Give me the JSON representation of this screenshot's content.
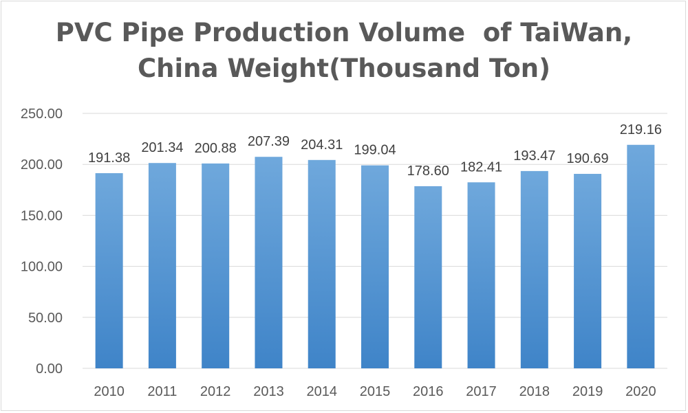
{
  "chart_data": {
    "type": "bar",
    "title_lines": [
      "PVC Pipe Production Volume  of TaiWan,",
      "China Weight(Thousand Ton)"
    ],
    "categories": [
      "2010",
      "2011",
      "2012",
      "2013",
      "2014",
      "2015",
      "2016",
      "2017",
      "2018",
      "2019",
      "2020"
    ],
    "values": [
      191.38,
      201.34,
      200.88,
      207.39,
      204.31,
      199.04,
      178.6,
      182.41,
      193.47,
      190.69,
      219.16
    ],
    "value_labels": [
      "191.38",
      "201.34",
      "200.88",
      "207.39",
      "204.31",
      "199.04",
      "178.60",
      "182.41",
      "193.47",
      "190.69",
      "219.16"
    ],
    "y_ticks": [
      0,
      50,
      100,
      150,
      200,
      250
    ],
    "y_tick_labels": [
      "0.00",
      "50.00",
      "100.00",
      "150.00",
      "200.00",
      "250.00"
    ],
    "ylim": [
      0,
      250
    ],
    "xlabel": "",
    "ylabel": "",
    "grid": true,
    "legend": "none",
    "bar_color_top": "#6fa8dc",
    "bar_color_bottom": "#3f84c8",
    "grid_color": "#d9d9d9"
  }
}
